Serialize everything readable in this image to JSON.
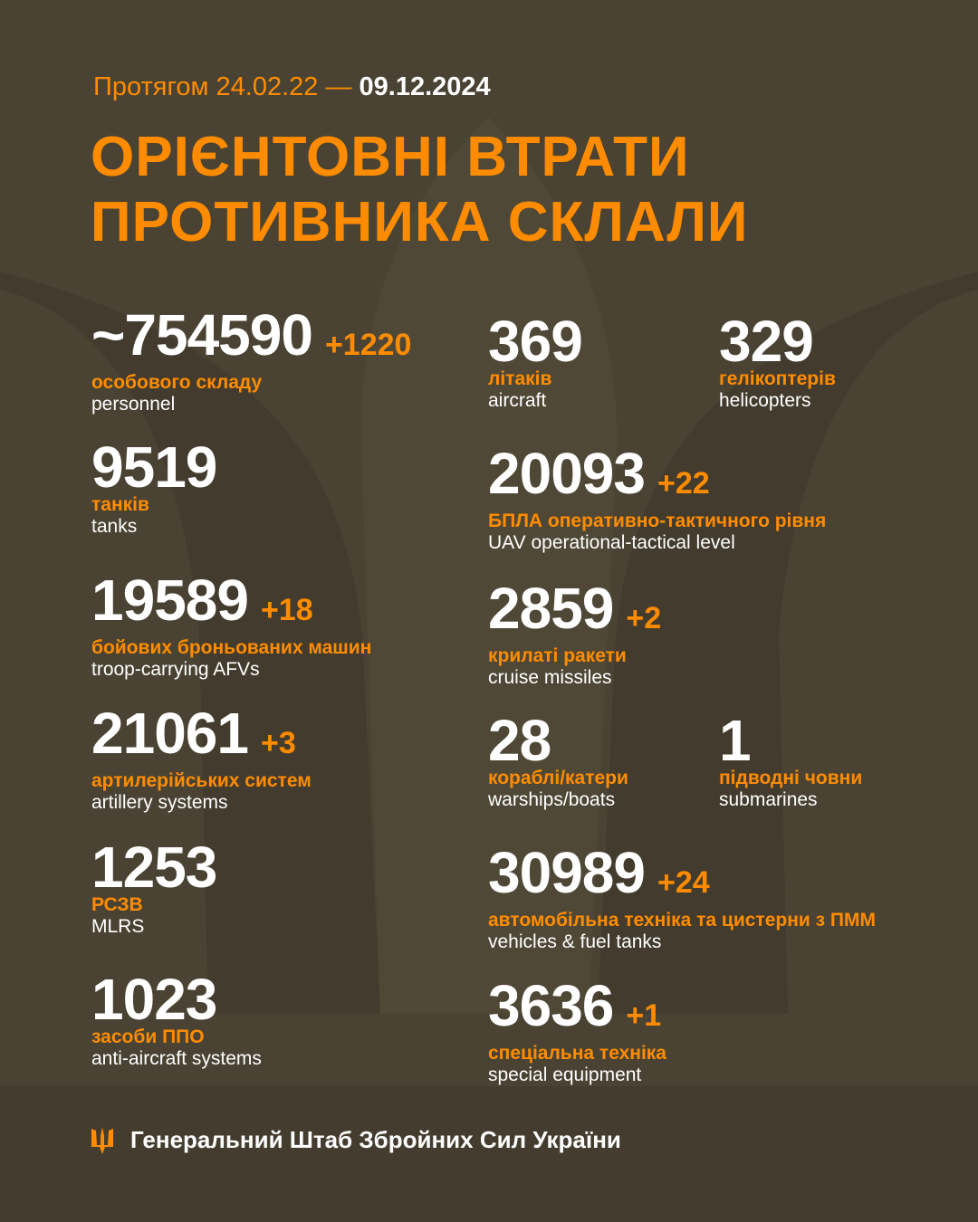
{
  "header": {
    "period_prefix": "Протягом 24.02.22 — ",
    "date": "09.12.2024",
    "title_line1": "ОРІЄНТОВНІ ВТРАТИ",
    "title_line2": "ПРОТИВНИКА СКЛАЛИ"
  },
  "colors": {
    "background": "#4a4333",
    "accent": "#ff8c00",
    "text": "#ffffff"
  },
  "items": [
    {
      "value": "~754590",
      "delta": "+1220",
      "ua": "особового складу",
      "en": "personnel"
    },
    {
      "value": "9519",
      "delta": "",
      "ua": "танків",
      "en": "tanks"
    },
    {
      "value": "19589",
      "delta": "+18",
      "ua": "бойових броньованих машин",
      "en": "troop-carrying AFVs"
    },
    {
      "value": "21061",
      "delta": "+3",
      "ua": "артилерійських систем",
      "en": "artillery systems"
    },
    {
      "value": "1253",
      "delta": "",
      "ua": "РСЗВ",
      "en": "MLRS"
    },
    {
      "value": "1023",
      "delta": "",
      "ua": "засоби ППО",
      "en": "anti-aircraft systems"
    },
    {
      "value": "369",
      "delta": "",
      "ua": "літаків",
      "en": "aircraft"
    },
    {
      "value": "329",
      "delta": "",
      "ua": "гелікоптерів",
      "en": "helicopters"
    },
    {
      "value": "20093",
      "delta": "+22",
      "ua": "БПЛА оперативно-тактичного рівня",
      "en": "UAV operational-tactical level"
    },
    {
      "value": "2859",
      "delta": "+2",
      "ua": "крилаті ракети",
      "en": "cruise missiles"
    },
    {
      "value": "28",
      "delta": "",
      "ua": "кораблі/катери",
      "en": "warships/boats"
    },
    {
      "value": "1",
      "delta": "",
      "ua": "підводні човни",
      "en": "submarines"
    },
    {
      "value": "30989",
      "delta": "+24",
      "ua": "автомобільна техніка та цистерни з ПММ",
      "en": "vehicles & fuel tanks"
    },
    {
      "value": "3636",
      "delta": "+1",
      "ua": "спеціальна техніка",
      "en": "special equipment"
    }
  ],
  "footer": {
    "icon": "trident-icon",
    "text": "Генеральний Штаб Збройних Сил України"
  }
}
